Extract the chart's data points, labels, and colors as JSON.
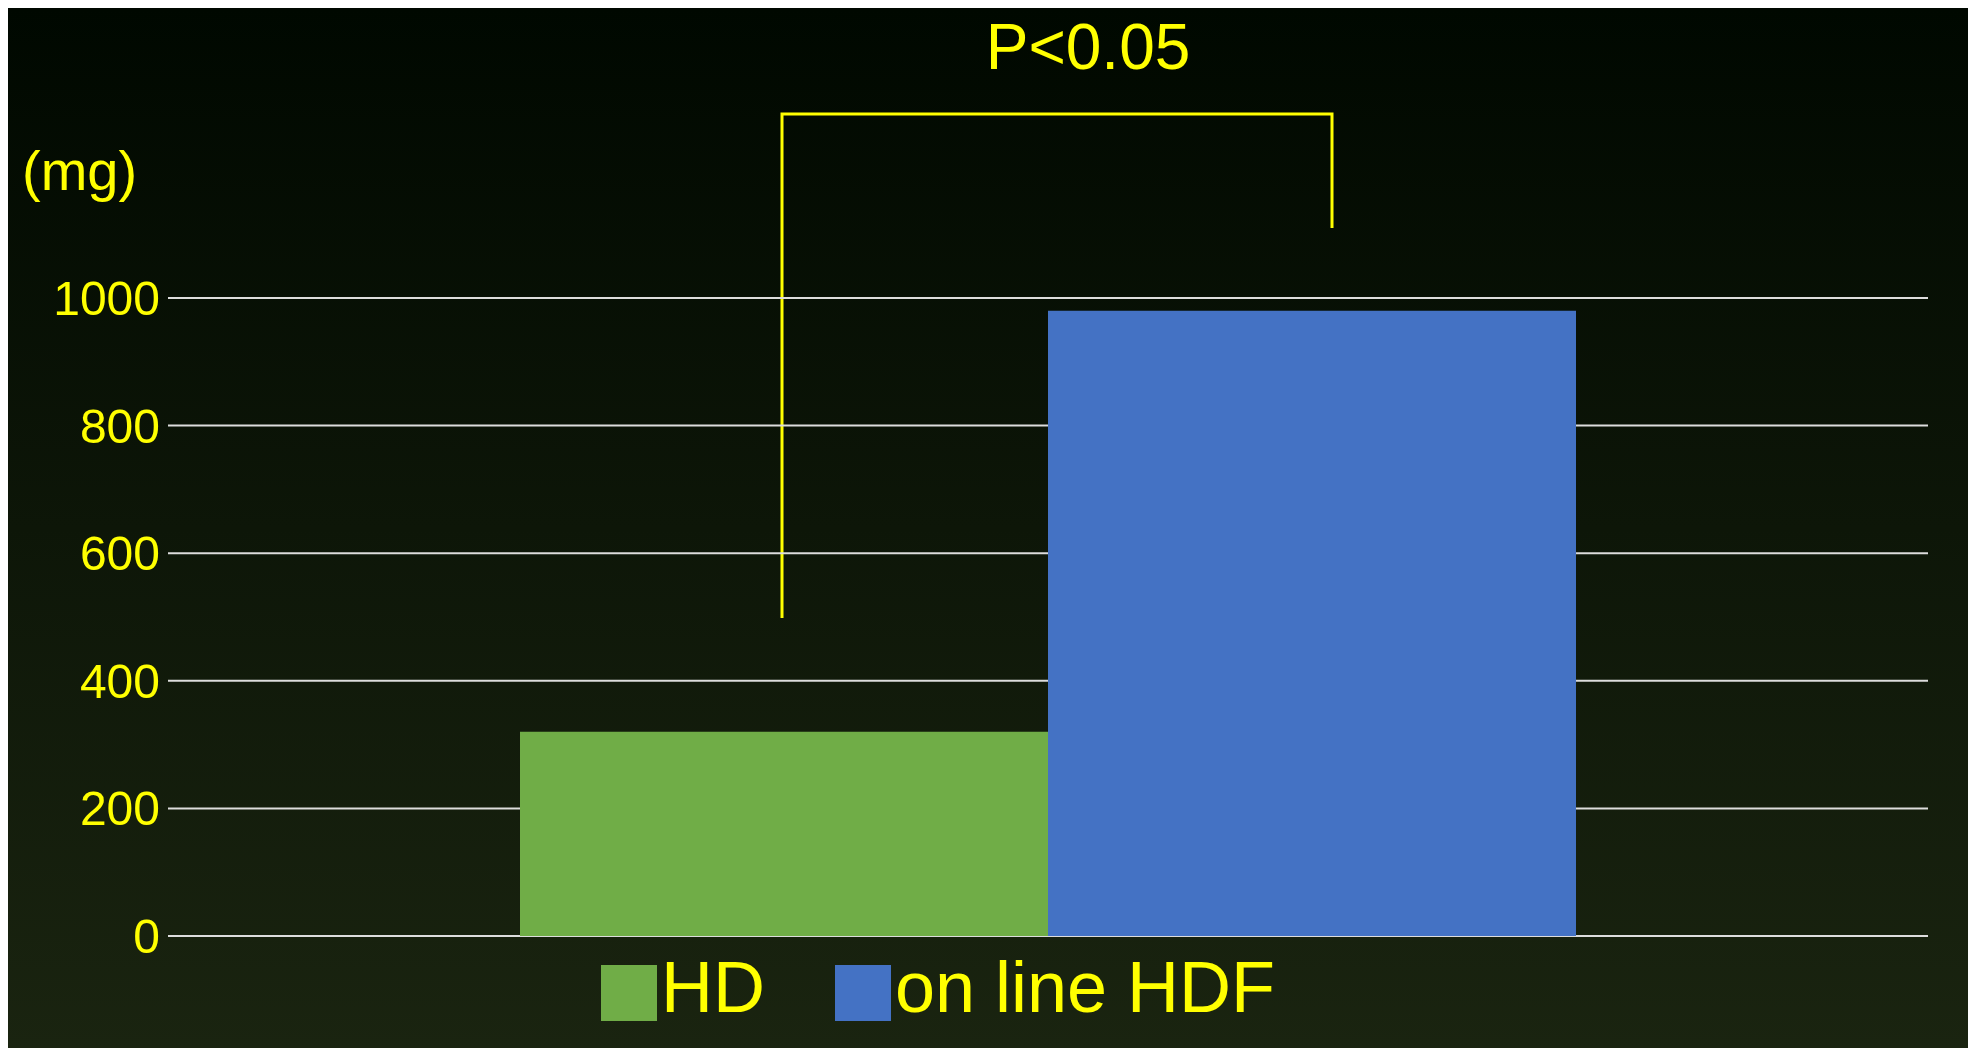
{
  "chart_data": {
    "type": "bar",
    "ylabel": "(mg)",
    "categories": [
      null
    ],
    "series": [
      {
        "name": "HD",
        "color": "#70ad47",
        "values": [
          320
        ]
      },
      {
        "name": "on line HDF",
        "color": "#4472c4",
        "values": [
          980
        ]
      }
    ],
    "ylim": [
      0,
      1000
    ],
    "yticks": [
      0,
      200,
      400,
      600,
      800,
      1000
    ],
    "grid": "y",
    "legend": "bottom",
    "tick_labels": "y",
    "annotations": [
      "P<0.05"
    ]
  }
}
